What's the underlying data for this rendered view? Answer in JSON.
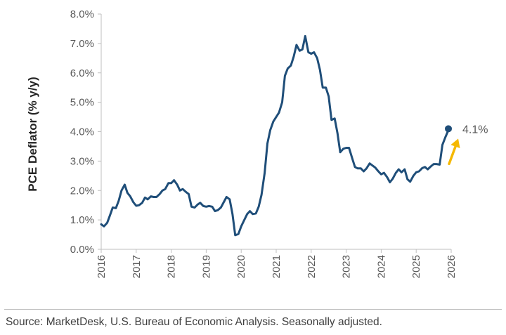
{
  "chart_data": {
    "type": "line",
    "title": "",
    "ylabel": "PCE Deflator (% y/y)",
    "xlabel": "",
    "ylim": [
      0,
      8
    ],
    "y_ticks": [
      "0.0%",
      "1.0%",
      "2.0%",
      "3.0%",
      "4.0%",
      "5.0%",
      "6.0%",
      "7.0%",
      "8.0%"
    ],
    "x_ticks": [
      "2016",
      "2017",
      "2018",
      "2019",
      "2020",
      "2021",
      "2022",
      "2023",
      "2024",
      "2025",
      "2026"
    ],
    "xlim": [
      2016,
      2026
    ],
    "grid": false,
    "legend": "none",
    "series": [
      {
        "color": "#1f4e79",
        "points": [
          [
            2016.0,
            0.85
          ],
          [
            2016.08,
            0.78
          ],
          [
            2016.17,
            0.9
          ],
          [
            2016.25,
            1.15
          ],
          [
            2016.33,
            1.42
          ],
          [
            2016.42,
            1.4
          ],
          [
            2016.5,
            1.65
          ],
          [
            2016.58,
            2.0
          ],
          [
            2016.67,
            2.2
          ],
          [
            2016.75,
            1.92
          ],
          [
            2016.83,
            1.8
          ],
          [
            2016.92,
            1.6
          ],
          [
            2017.0,
            1.48
          ],
          [
            2017.08,
            1.5
          ],
          [
            2017.17,
            1.58
          ],
          [
            2017.25,
            1.76
          ],
          [
            2017.33,
            1.7
          ],
          [
            2017.42,
            1.8
          ],
          [
            2017.5,
            1.78
          ],
          [
            2017.58,
            1.78
          ],
          [
            2017.67,
            1.88
          ],
          [
            2017.75,
            2.0
          ],
          [
            2017.83,
            2.05
          ],
          [
            2017.92,
            2.25
          ],
          [
            2018.0,
            2.25
          ],
          [
            2018.08,
            2.35
          ],
          [
            2018.17,
            2.2
          ],
          [
            2018.25,
            2.0
          ],
          [
            2018.33,
            2.05
          ],
          [
            2018.42,
            1.95
          ],
          [
            2018.5,
            1.88
          ],
          [
            2018.58,
            1.45
          ],
          [
            2018.67,
            1.42
          ],
          [
            2018.75,
            1.52
          ],
          [
            2018.83,
            1.58
          ],
          [
            2018.92,
            1.47
          ],
          [
            2019.0,
            1.45
          ],
          [
            2019.08,
            1.47
          ],
          [
            2019.17,
            1.45
          ],
          [
            2019.25,
            1.3
          ],
          [
            2019.33,
            1.33
          ],
          [
            2019.42,
            1.42
          ],
          [
            2019.5,
            1.6
          ],
          [
            2019.58,
            1.78
          ],
          [
            2019.67,
            1.7
          ],
          [
            2019.75,
            1.2
          ],
          [
            2019.83,
            0.48
          ],
          [
            2019.92,
            0.52
          ],
          [
            2020.0,
            0.78
          ],
          [
            2020.08,
            0.98
          ],
          [
            2020.17,
            1.2
          ],
          [
            2020.25,
            1.3
          ],
          [
            2020.33,
            1.2
          ],
          [
            2020.42,
            1.22
          ],
          [
            2020.5,
            1.45
          ],
          [
            2020.58,
            1.85
          ],
          [
            2020.67,
            2.6
          ],
          [
            2020.75,
            3.6
          ],
          [
            2020.83,
            4.05
          ],
          [
            2020.92,
            4.35
          ],
          [
            2021.0,
            4.5
          ],
          [
            2021.08,
            4.65
          ],
          [
            2021.17,
            5.0
          ],
          [
            2021.25,
            5.9
          ],
          [
            2021.33,
            6.15
          ],
          [
            2021.42,
            6.25
          ],
          [
            2021.5,
            6.55
          ],
          [
            2021.58,
            6.95
          ],
          [
            2021.67,
            6.75
          ],
          [
            2021.75,
            6.8
          ],
          [
            2021.83,
            7.25
          ],
          [
            2021.92,
            6.7
          ],
          [
            2022.0,
            6.65
          ],
          [
            2022.08,
            6.7
          ],
          [
            2022.17,
            6.5
          ],
          [
            2022.25,
            6.1
          ],
          [
            2022.33,
            5.5
          ],
          [
            2022.42,
            5.5
          ],
          [
            2022.5,
            5.2
          ],
          [
            2022.58,
            4.4
          ],
          [
            2022.67,
            4.45
          ],
          [
            2022.75,
            3.95
          ],
          [
            2022.83,
            3.3
          ],
          [
            2022.92,
            3.42
          ],
          [
            2023.0,
            3.45
          ],
          [
            2023.08,
            3.45
          ],
          [
            2023.17,
            3.1
          ],
          [
            2023.25,
            2.8
          ],
          [
            2023.33,
            2.75
          ],
          [
            2023.42,
            2.75
          ],
          [
            2023.5,
            2.65
          ],
          [
            2023.58,
            2.75
          ],
          [
            2023.67,
            2.92
          ],
          [
            2023.75,
            2.85
          ],
          [
            2023.83,
            2.78
          ],
          [
            2023.92,
            2.65
          ],
          [
            2024.0,
            2.55
          ],
          [
            2024.08,
            2.6
          ],
          [
            2024.17,
            2.45
          ],
          [
            2024.25,
            2.28
          ],
          [
            2024.33,
            2.4
          ],
          [
            2024.42,
            2.6
          ],
          [
            2024.5,
            2.72
          ],
          [
            2024.58,
            2.62
          ],
          [
            2024.67,
            2.72
          ],
          [
            2024.75,
            2.38
          ],
          [
            2024.83,
            2.3
          ],
          [
            2024.92,
            2.5
          ],
          [
            2025.0,
            2.62
          ],
          [
            2025.08,
            2.65
          ],
          [
            2025.17,
            2.76
          ],
          [
            2025.25,
            2.8
          ],
          [
            2025.33,
            2.72
          ],
          [
            2025.42,
            2.82
          ],
          [
            2025.5,
            2.9
          ],
          [
            2025.58,
            2.9
          ],
          [
            2025.67,
            2.88
          ],
          [
            2025.75,
            3.55
          ],
          [
            2025.83,
            3.8
          ],
          [
            2025.92,
            4.05
          ]
        ]
      }
    ],
    "end_point": {
      "x": 2025.92,
      "y": 4.1,
      "label": "4.1%",
      "marker_color": "#1f4e79",
      "arrow_color": "#f5b800"
    },
    "axis_color": "#bfbfbf"
  },
  "source_note": "Source: MarketDesk, U.S. Bureau of Economic Analysis. Seasonally adjusted."
}
